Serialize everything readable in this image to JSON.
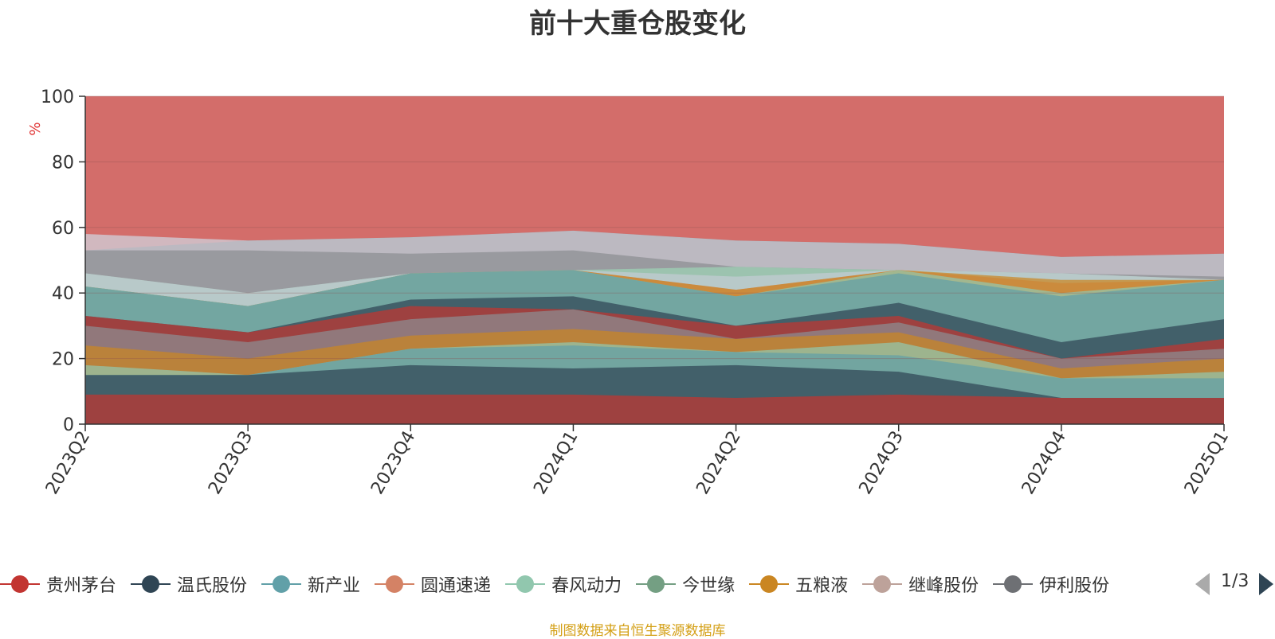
{
  "chart_data": {
    "type": "area",
    "title": "前十大重仓股变化",
    "ylabel": "%",
    "ylim": [
      0,
      100
    ],
    "yticks": [
      0,
      20,
      40,
      60,
      80,
      100
    ],
    "categories": [
      "2023Q2",
      "2023Q3",
      "2023Q4",
      "2024Q1",
      "2024Q2",
      "2024Q3",
      "2024Q4",
      "2025Q1"
    ],
    "grid": true,
    "stacked": true,
    "legend_position": "bottom",
    "legend_page": "1/3",
    "bands": [
      {
        "color": "#c23531",
        "values": [
          100,
          100,
          100,
          100,
          100,
          100,
          100,
          100
        ]
      },
      {
        "color": "#6e7074",
        "values": [
          53,
          56,
          57,
          59,
          56,
          55,
          51,
          52
        ]
      },
      {
        "color": "#d0d6e0",
        "values": [
          58,
          56,
          57,
          59,
          56,
          55,
          51,
          52
        ]
      },
      {
        "color": "#8c8e92",
        "values": [
          53,
          53,
          52,
          53,
          48,
          47,
          46,
          45
        ]
      },
      {
        "color": "#9dd3b6",
        "values": [
          46,
          40,
          46,
          47,
          48,
          47,
          46,
          44
        ]
      },
      {
        "color": "#c4ccd3",
        "values": [
          46,
          40,
          46,
          47,
          45,
          47,
          46,
          44
        ]
      },
      {
        "color": "#d48265",
        "values": [
          42,
          36,
          46,
          47,
          41,
          47,
          43,
          44
        ]
      },
      {
        "color": "#ca8622",
        "values": [
          42,
          36,
          46,
          47,
          41,
          47,
          44,
          44
        ]
      },
      {
        "color": "#91c7ae",
        "values": [
          42,
          36,
          46,
          47,
          39,
          47,
          40,
          44
        ]
      },
      {
        "color": "#61a0a8",
        "values": [
          42,
          36,
          46,
          47,
          39,
          46,
          39,
          44
        ]
      },
      {
        "color": "#2f4554",
        "values": [
          33,
          28,
          38,
          39,
          30,
          37,
          25,
          32
        ]
      },
      {
        "color": "#c23531",
        "values": [
          33,
          28,
          36,
          35,
          30,
          33,
          20,
          26
        ]
      },
      {
        "color": "#8c8e92",
        "values": [
          30,
          25,
          32,
          35,
          26,
          31,
          20,
          23
        ]
      },
      {
        "color": "#ca8622",
        "values": [
          24,
          20,
          27,
          29,
          26,
          28,
          17,
          20
        ]
      },
      {
        "color": "#91c7ae",
        "values": [
          18,
          15,
          23,
          25,
          22,
          25,
          14,
          16
        ]
      },
      {
        "color": "#61a0a8",
        "values": [
          15,
          15,
          23,
          24,
          22,
          21,
          14,
          14
        ]
      },
      {
        "color": "#2f4554",
        "values": [
          15,
          15,
          18,
          17,
          18,
          16,
          8,
          8
        ]
      },
      {
        "color": "#c23531",
        "values": [
          9,
          9,
          9,
          9,
          8,
          9,
          8,
          8
        ]
      }
    ],
    "legend": [
      {
        "name": "贵州茅台",
        "color": "#c23531"
      },
      {
        "name": "温氏股份",
        "color": "#2f4554"
      },
      {
        "name": "新产业",
        "color": "#61a0a8"
      },
      {
        "name": "圆通速递",
        "color": "#d48265"
      },
      {
        "name": "春风动力",
        "color": "#91c7ae"
      },
      {
        "name": "今世缘",
        "color": "#749f83"
      },
      {
        "name": "五粮液",
        "color": "#ca8622"
      },
      {
        "name": "继峰股份",
        "color": "#bda29a"
      },
      {
        "name": "伊利股份",
        "color": "#6e7074"
      }
    ],
    "source_note": "制图数据来自恒生聚源数据库"
  }
}
